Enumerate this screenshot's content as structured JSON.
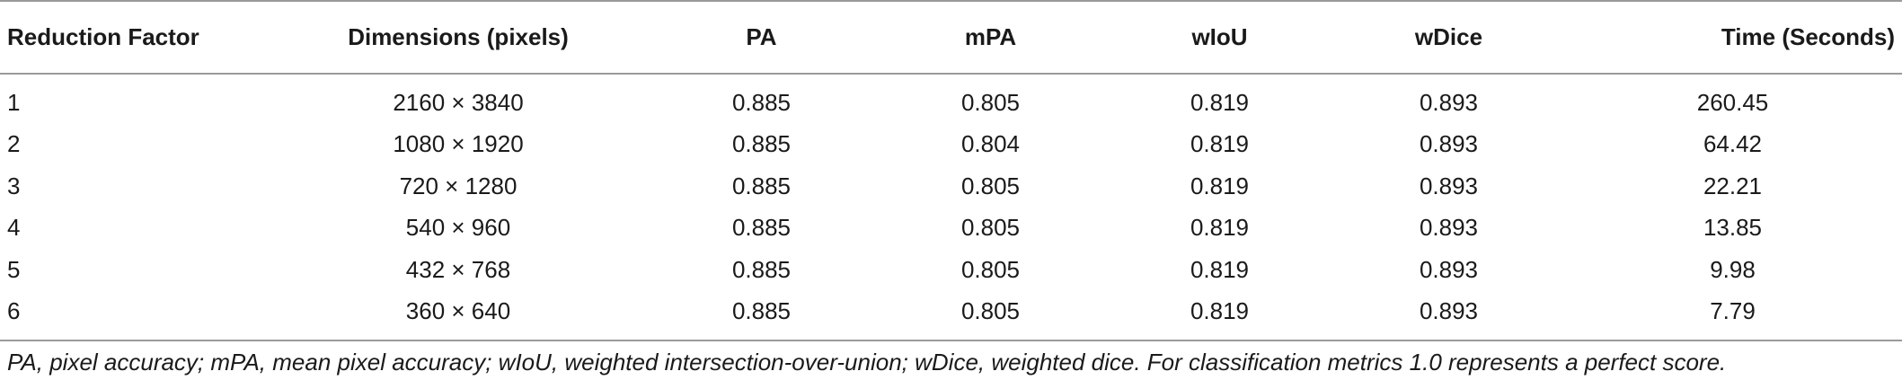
{
  "table": {
    "headers": [
      "Reduction Factor",
      "Dimensions (pixels)",
      "PA",
      "mPA",
      "wIoU",
      "wDice",
      "Time (Seconds)"
    ],
    "rows": [
      [
        "1",
        "2160 × 3840",
        "0.885",
        "0.805",
        "0.819",
        "0.893",
        "260.45"
      ],
      [
        "2",
        "1080 × 1920",
        "0.885",
        "0.804",
        "0.819",
        "0.893",
        "64.42"
      ],
      [
        "3",
        "720 × 1280",
        "0.885",
        "0.805",
        "0.819",
        "0.893",
        "22.21"
      ],
      [
        "4",
        "540 × 960",
        "0.885",
        "0.805",
        "0.819",
        "0.893",
        "13.85"
      ],
      [
        "5",
        "432 × 768",
        "0.885",
        "0.805",
        "0.819",
        "0.893",
        "9.98"
      ],
      [
        "6",
        "360 × 640",
        "0.885",
        "0.805",
        "0.819",
        "0.893",
        "7.79"
      ]
    ]
  },
  "footnote": "PA, pixel accuracy; mPA, mean pixel accuracy; wIoU, weighted intersection-over-union; wDice, weighted dice. For classification metrics 1.0 represents a perfect score."
}
